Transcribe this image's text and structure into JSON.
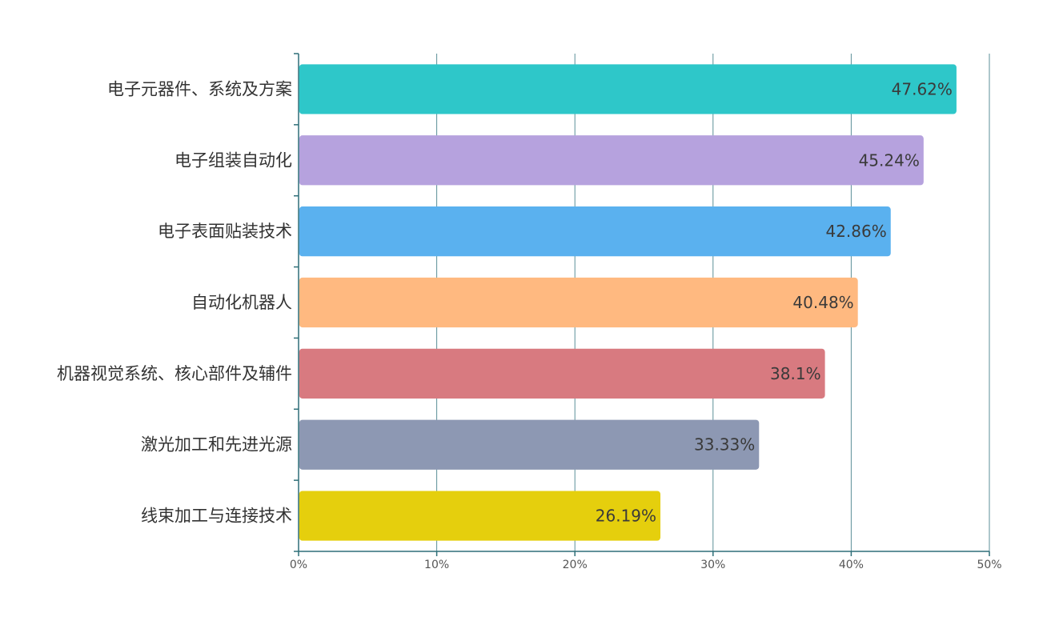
{
  "chart_data": {
    "type": "bar",
    "orientation": "horizontal",
    "categories": [
      "电子元器件、系统及方案",
      "电子组装自动化",
      "电子表面贴装技术",
      "自动化机器人",
      "机器视觉系统、核心部件及辅件",
      "激光加工和先进光源",
      "线束加工与连接技术"
    ],
    "values": [
      47.62,
      45.24,
      42.86,
      40.48,
      38.1,
      33.33,
      26.19
    ],
    "value_labels": [
      "47.62%",
      "45.24%",
      "42.86%",
      "40.48%",
      "38.1%",
      "33.33%",
      "26.19%"
    ],
    "colors": [
      "#2ec7c9",
      "#b6a2de",
      "#5ab1ef",
      "#ffb980",
      "#d87a80",
      "#8d98b3",
      "#e5cf0d"
    ],
    "xlim": [
      0,
      50
    ],
    "xticks": [
      "0%",
      "10%",
      "20%",
      "30%",
      "40%",
      "50%"
    ],
    "grid": true,
    "title": "",
    "xlabel": "",
    "ylabel": ""
  }
}
